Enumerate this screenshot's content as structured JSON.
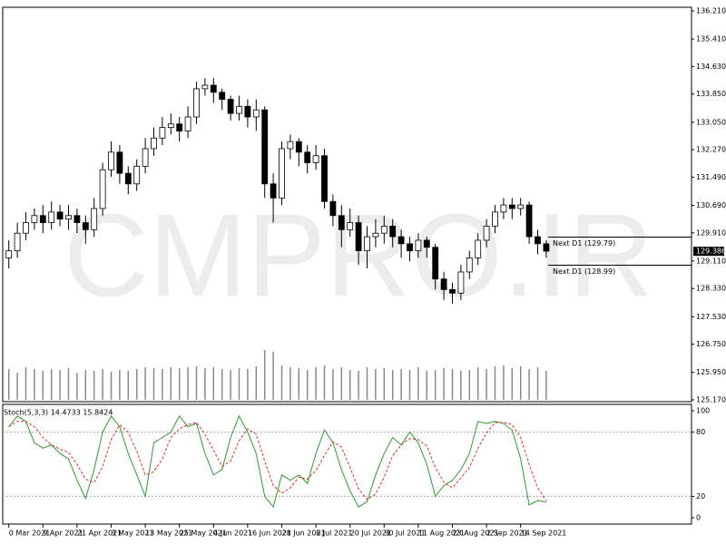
{
  "chart_data": [
    {
      "type": "candlestick",
      "watermark": "CMPRO.IR",
      "categories": [
        "0 Mar 2021",
        null,
        null,
        null,
        "9 Apr 2021",
        null,
        null,
        null,
        "21 Apr 2021",
        null,
        null,
        null,
        "3 May 2021",
        null,
        null,
        null,
        "13 May 2021",
        null,
        null,
        null,
        "25 May 2021",
        null,
        null,
        null,
        "4 Jun 2021",
        null,
        null,
        null,
        "16 Jun 2021",
        null,
        null,
        null,
        "28 Jun 2021",
        null,
        null,
        null,
        "8 Jul 2021",
        null,
        null,
        null,
        "20 Jul 2021",
        null,
        null,
        null,
        "30 Jul 2021",
        null,
        null,
        null,
        "11 Aug 2021",
        null,
        null,
        null,
        "23 Aug 2021",
        null,
        null,
        null,
        "2 Sep 2021",
        null,
        null,
        null,
        "14 Sep 2021",
        null,
        null,
        null
      ],
      "open": [
        129.2,
        129.4,
        129.9,
        130.2,
        130.4,
        130.2,
        130.5,
        130.3,
        130.4,
        130.2,
        130.0,
        130.6,
        131.7,
        132.2,
        131.6,
        131.3,
        131.8,
        132.3,
        132.6,
        132.9,
        133.0,
        132.8,
        133.2,
        134.0,
        134.1,
        133.9,
        133.7,
        133.3,
        133.5,
        133.2,
        133.4,
        131.3,
        130.9,
        132.3,
        132.5,
        132.2,
        131.9,
        132.1,
        130.8,
        130.4,
        130.0,
        130.2,
        129.4,
        129.8,
        129.9,
        130.1,
        129.8,
        129.6,
        129.4,
        129.7,
        129.5,
        128.6,
        128.3,
        128.2,
        128.8,
        129.2,
        129.7,
        130.1,
        130.5,
        130.7,
        130.6,
        130.7,
        129.8,
        129.6
      ],
      "high": [
        129.7,
        130.2,
        130.5,
        130.6,
        130.7,
        130.8,
        130.7,
        130.7,
        130.6,
        130.4,
        130.9,
        131.9,
        132.5,
        132.4,
        131.8,
        132.0,
        132.6,
        132.9,
        133.2,
        133.3,
        133.2,
        133.5,
        134.2,
        134.3,
        134.3,
        134.0,
        133.8,
        133.8,
        133.7,
        133.7,
        133.5,
        131.6,
        132.5,
        132.7,
        132.6,
        132.4,
        132.4,
        132.3,
        131.0,
        130.7,
        130.6,
        130.4,
        130.1,
        130.3,
        130.4,
        130.3,
        130.0,
        129.8,
        129.9,
        129.8,
        129.6,
        128.8,
        128.5,
        129.0,
        129.4,
        129.9,
        130.3,
        130.7,
        130.9,
        130.9,
        130.9,
        130.8,
        130.0,
        129.7
      ],
      "low": [
        128.9,
        129.2,
        129.7,
        130.0,
        129.9,
        130.0,
        130.1,
        130.0,
        129.9,
        129.6,
        129.8,
        130.4,
        131.5,
        131.3,
        131.0,
        131.1,
        131.6,
        132.1,
        132.4,
        132.7,
        132.5,
        132.6,
        133.0,
        133.8,
        133.6,
        133.4,
        133.1,
        133.1,
        132.9,
        132.8,
        130.9,
        130.2,
        130.7,
        132.0,
        131.8,
        131.6,
        131.7,
        130.6,
        130.1,
        129.5,
        129.8,
        129.0,
        128.9,
        129.5,
        129.6,
        129.5,
        129.2,
        129.1,
        129.2,
        129.2,
        128.3,
        128.0,
        127.9,
        128.0,
        128.6,
        129.0,
        129.5,
        129.9,
        130.3,
        130.3,
        130.4,
        129.6,
        129.3,
        129.2
      ],
      "close": [
        129.4,
        129.9,
        130.2,
        130.4,
        130.2,
        130.5,
        130.3,
        130.4,
        130.2,
        130.0,
        130.6,
        131.7,
        132.2,
        131.6,
        131.3,
        131.8,
        132.3,
        132.6,
        132.9,
        133.0,
        132.8,
        133.2,
        134.0,
        134.1,
        133.9,
        133.7,
        133.3,
        133.5,
        133.2,
        133.4,
        131.3,
        130.9,
        132.3,
        132.5,
        132.2,
        131.9,
        132.1,
        130.8,
        130.4,
        130.0,
        130.2,
        129.4,
        129.8,
        129.9,
        130.1,
        129.8,
        129.6,
        129.4,
        129.7,
        129.5,
        128.6,
        128.3,
        128.2,
        128.8,
        129.2,
        129.7,
        130.1,
        130.5,
        130.7,
        130.6,
        130.7,
        129.8,
        129.6,
        129.39
      ],
      "volume": [
        34,
        30,
        36,
        34,
        32,
        34,
        33,
        35,
        30,
        33,
        32,
        34,
        31,
        33,
        32,
        34,
        36,
        35,
        34,
        36,
        35,
        36,
        37,
        35,
        36,
        34,
        33,
        35,
        34,
        37,
        55,
        53,
        38,
        36,
        35,
        33,
        36,
        38,
        34,
        36,
        33,
        32,
        36,
        34,
        35,
        33,
        34,
        33,
        36,
        32,
        33,
        35,
        34,
        32,
        33,
        36,
        34,
        37,
        38,
        35,
        37,
        34,
        36,
        32
      ],
      "up_color": "#ffffff",
      "down_color": "#000000",
      "volume_color": "#888888",
      "ylim": [
        125.17,
        136.21
      ],
      "yticks": [
        {
          "value": 136.21,
          "label": "136.210"
        },
        {
          "value": 135.41,
          "label": "135.410"
        },
        {
          "value": 134.63,
          "label": "134.630"
        },
        {
          "value": 133.85,
          "label": "133.850"
        },
        {
          "value": 133.05,
          "label": "133.050"
        },
        {
          "value": 132.27,
          "label": "132.270"
        },
        {
          "value": 131.49,
          "label": "131.490"
        },
        {
          "value": 130.69,
          "label": "130.690"
        },
        {
          "value": 129.91,
          "label": "129.910"
        },
        {
          "value": 129.11,
          "label": "129.110"
        },
        {
          "value": 128.33,
          "label": "128.330"
        },
        {
          "value": 127.53,
          "label": "127.530"
        },
        {
          "value": 126.75,
          "label": "126.750"
        },
        {
          "value": 125.95,
          "label": "125.950"
        },
        {
          "value": 125.17,
          "label": "125.170"
        }
      ],
      "current_price": {
        "value": 129.386,
        "label": "129.386"
      },
      "levels": [
        {
          "value": 129.79,
          "label": "Next D1 (129.79)"
        },
        {
          "value": 128.99,
          "label": "Next D1 (128.99)"
        }
      ]
    },
    {
      "type": "line",
      "title": "Stoch(5,3,3) 14.4733 15.8424",
      "series": [
        {
          "color": "#2e9a2e",
          "dash": false,
          "values": [
            85,
            95,
            90,
            70,
            65,
            68,
            60,
            55,
            35,
            18,
            45,
            80,
            95,
            85,
            60,
            40,
            20,
            70,
            75,
            80,
            95,
            85,
            88,
            60,
            40,
            45,
            75,
            95,
            80,
            60,
            20,
            10,
            40,
            35,
            40,
            32,
            60,
            82,
            70,
            45,
            25,
            10,
            15,
            40,
            60,
            75,
            68,
            80,
            70,
            50,
            20,
            30,
            35,
            45,
            60,
            90,
            88,
            90,
            88,
            82,
            55,
            12,
            16,
            14.4733
          ]
        },
        {
          "color": "#e03030",
          "dash": true,
          "values": [
            85,
            90,
            90,
            85,
            75,
            68,
            64,
            61,
            50,
            36,
            33,
            48,
            73,
            87,
            80,
            62,
            40,
            43,
            55,
            75,
            83,
            87,
            89,
            78,
            63,
            48,
            53,
            72,
            83,
            78,
            53,
            30,
            23,
            28,
            38,
            36,
            44,
            58,
            71,
            66,
            47,
            27,
            17,
            22,
            38,
            58,
            68,
            74,
            73,
            67,
            47,
            33,
            28,
            37,
            47,
            65,
            79,
            89,
            89,
            87,
            75,
            50,
            28,
            15.8424
          ]
        }
      ],
      "ylim": [
        0,
        100
      ],
      "yticks": [
        0,
        20,
        80,
        100
      ],
      "levels": [
        20,
        80
      ]
    }
  ]
}
